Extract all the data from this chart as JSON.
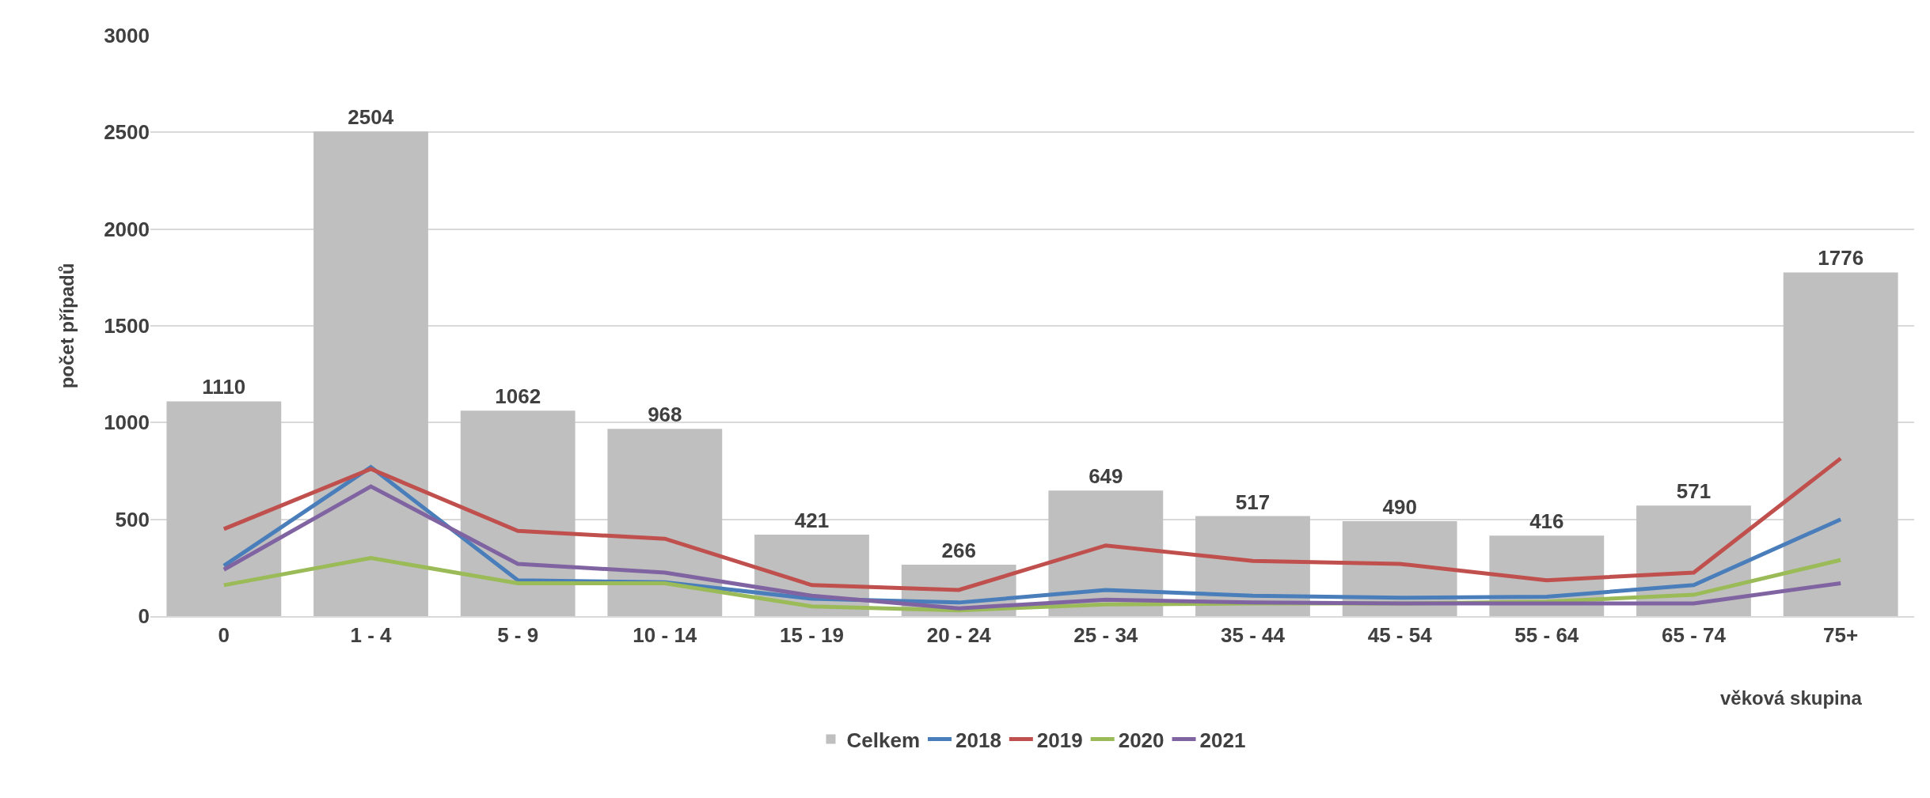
{
  "chart_data": {
    "type": "bar",
    "xlabel": "věková skupina",
    "ylabel": "počet případů",
    "categories": [
      "0",
      "1 - 4",
      "5 - 9",
      "10 - 14",
      "15 - 19",
      "20 - 24",
      "25 - 34",
      "35 - 44",
      "45 - 54",
      "55 - 64",
      "65 - 74",
      "75+"
    ],
    "series": [
      {
        "name": "Celkem",
        "color": "#bfbfbf",
        "values": [
          1110,
          2504,
          1062,
          968,
          421,
          266,
          649,
          517,
          490,
          416,
          571,
          1776
        ],
        "data_labels": true
      },
      {
        "name": "2018",
        "type": "line",
        "color": "#4a7ebb",
        "values": [
          260,
          770,
          185,
          175,
          90,
          70,
          135,
          105,
          95,
          100,
          160,
          500
        ]
      },
      {
        "name": "2019",
        "type": "line",
        "color": "#c0504d",
        "values": [
          450,
          760,
          440,
          400,
          160,
          135,
          365,
          285,
          270,
          185,
          225,
          815
        ]
      },
      {
        "name": "2020",
        "type": "line",
        "color": "#9bbb59",
        "values": [
          160,
          300,
          170,
          170,
          50,
          30,
          60,
          65,
          65,
          75,
          110,
          290
        ]
      },
      {
        "name": "2021",
        "type": "line",
        "color": "#8064a2",
        "values": [
          240,
          670,
          270,
          225,
          105,
          40,
          85,
          70,
          65,
          65,
          65,
          170
        ]
      }
    ],
    "ylim": [
      0,
      3000
    ],
    "yticks": [
      0,
      500,
      1000,
      1500,
      2000,
      2500,
      3000
    ],
    "grid": "y",
    "legend": "bottom",
    "marker": "none",
    "line_style": "solid"
  }
}
